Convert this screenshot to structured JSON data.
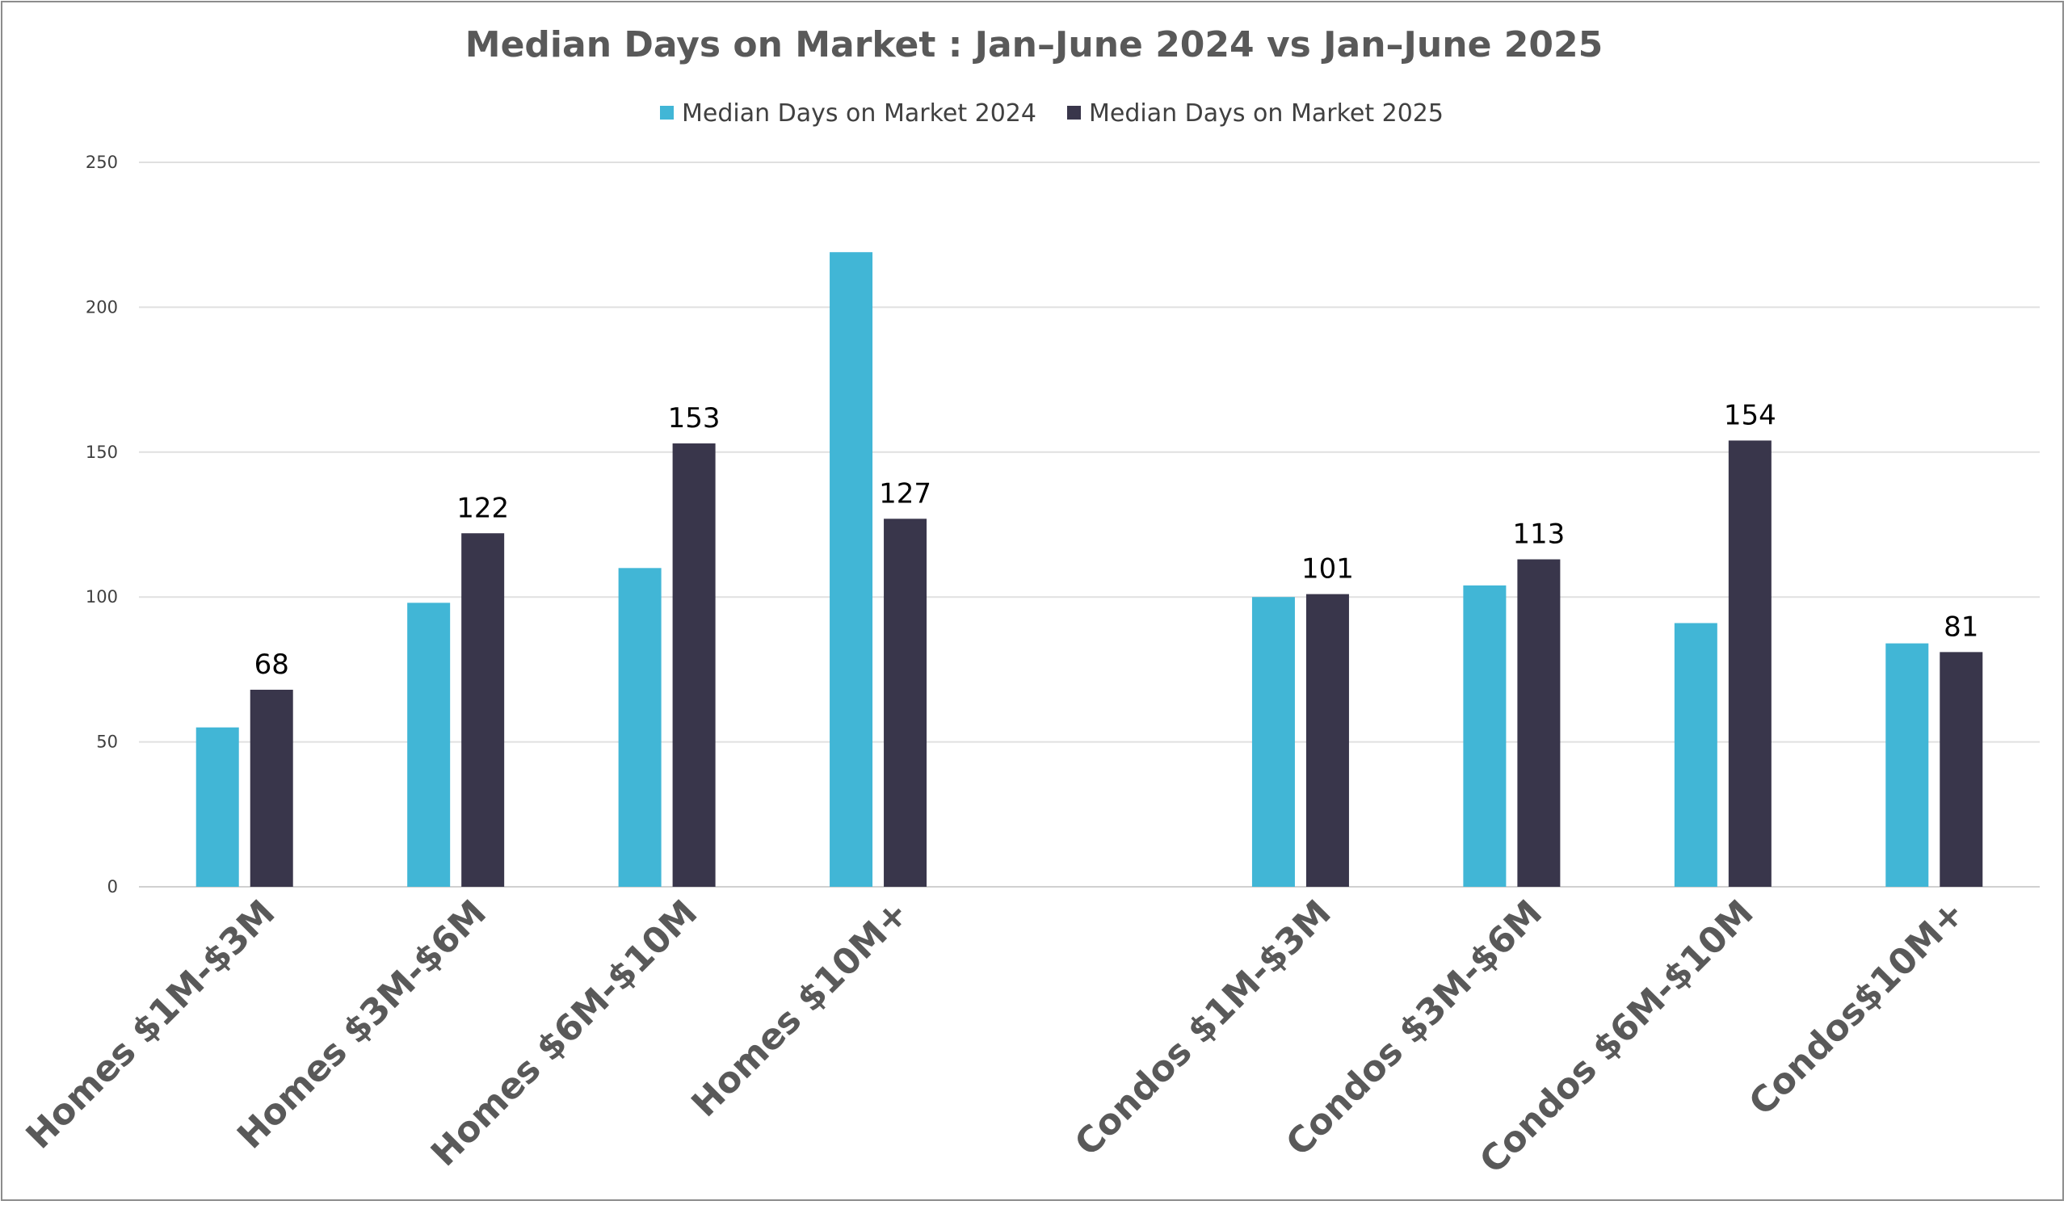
{
  "chart_data": {
    "type": "bar",
    "title": "Median Days on Market : Jan–June 2024 vs Jan–June 2025",
    "categories": [
      "Homes $1M-$3M",
      "Homes $3M-$6M",
      "Homes $6M-$10M",
      "Homes $10M+",
      "",
      "Condos $1M-$3M",
      "Condos $3M-$6M",
      "Condos $6M-$10M",
      "Condos$10M+"
    ],
    "series": [
      {
        "name": "Median Days on Market 2024",
        "color": "#41b6d6",
        "values": [
          55,
          98,
          110,
          219,
          null,
          100,
          104,
          91,
          84
        ]
      },
      {
        "name": "Median Days on Market 2025",
        "color": "#39364b",
        "values": [
          68,
          122,
          153,
          127,
          null,
          101,
          113,
          154,
          81
        ]
      }
    ],
    "data_labels_series": "Median Days on Market 2025",
    "xlabel": "",
    "ylabel": "",
    "ylim": [
      0,
      250
    ],
    "yticks": [
      0,
      50,
      100,
      150,
      200,
      250
    ],
    "grid": true,
    "legend_position": "top"
  }
}
